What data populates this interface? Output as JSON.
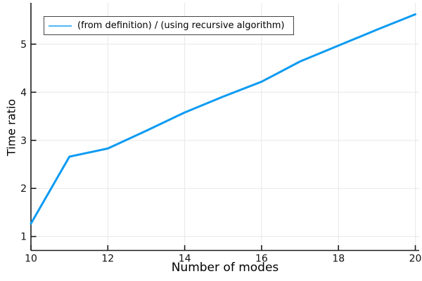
{
  "chart_data": {
    "type": "line",
    "title": "",
    "xlabel": "Number of modes",
    "ylabel": "Time ratio",
    "x": [
      10,
      11,
      12,
      13,
      14,
      15,
      16,
      17,
      18,
      19,
      20
    ],
    "series": [
      {
        "name": "(from definition) / (using recursive algorithm)",
        "values": [
          1.27,
          2.66,
          2.83,
          3.2,
          3.58,
          3.91,
          4.22,
          4.64,
          4.97,
          5.3,
          5.62
        ],
        "color": "#0d9bf2"
      }
    ],
    "xticks": [
      10,
      12,
      14,
      16,
      18,
      20
    ],
    "yticks": [
      1,
      2,
      3,
      4,
      5
    ],
    "xlim": [
      10,
      20.1
    ],
    "ylim": [
      0.71,
      5.86
    ],
    "grid": true,
    "legend_position": "top-left",
    "colors": {
      "line": "#0d9bf2",
      "legend_sample": "#4db8f5",
      "grid": "#e7e7e7",
      "spine": "#1c1c1c",
      "text": "#000000",
      "legend_border": "#454545",
      "background": "#ffffff"
    }
  }
}
